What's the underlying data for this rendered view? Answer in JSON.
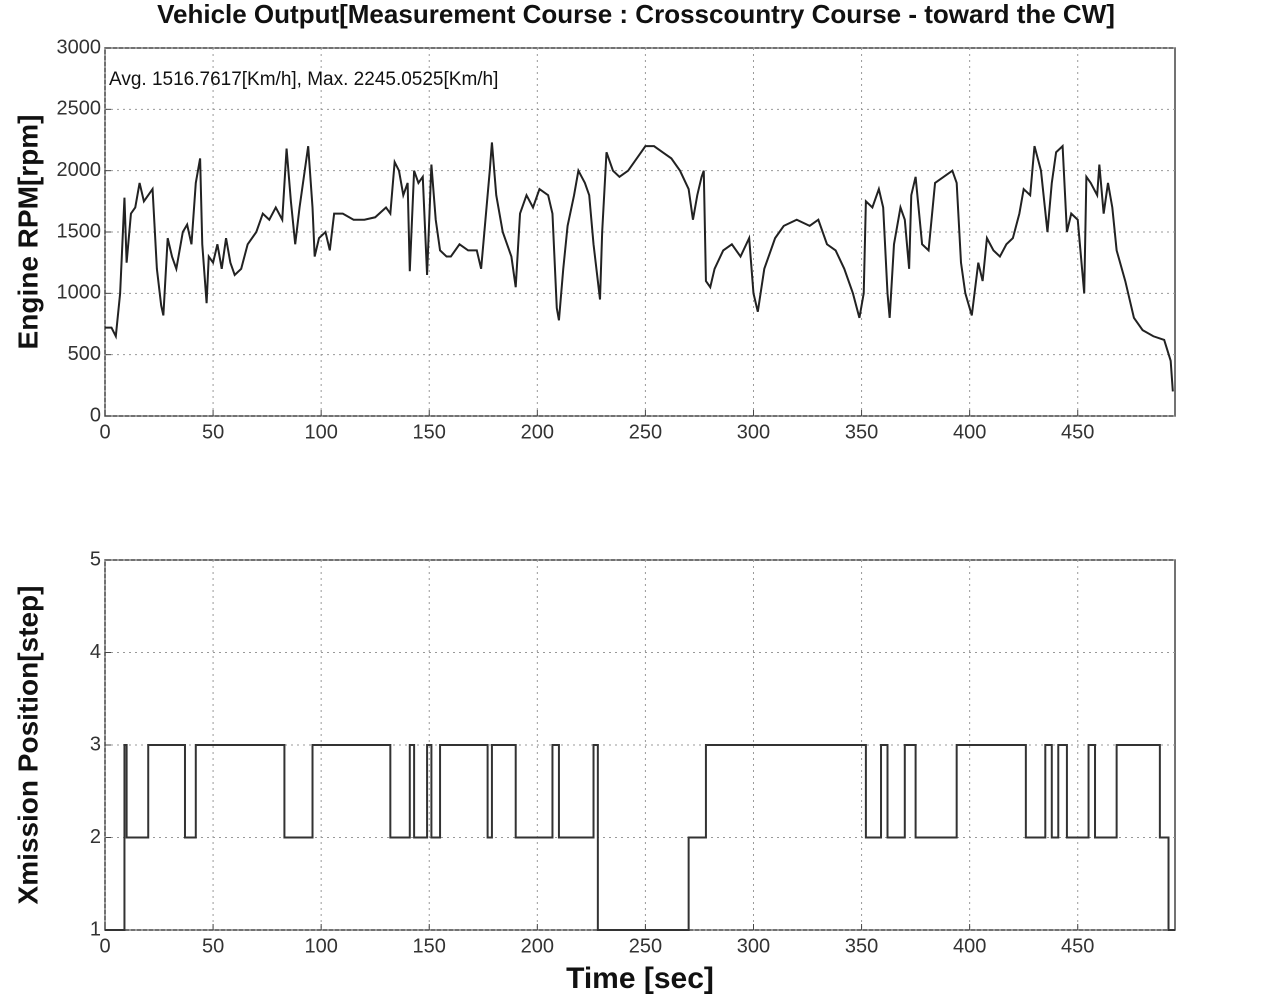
{
  "chart_data": [
    {
      "type": "line",
      "title": "Vehicle Output[Measurement Course : Crosscountry Course - toward the CW]",
      "annotation": "Avg. 1516.7617[Km/h],  Max. 2245.0525[Km/h]",
      "ylabel": "Engine RPM[rpm]",
      "color": "#222222",
      "grid": true,
      "xlim": [
        0,
        495
      ],
      "ylim": [
        0,
        3000
      ],
      "xticks": [
        0,
        50,
        100,
        150,
        200,
        250,
        300,
        350,
        400,
        450
      ],
      "yticks": [
        0,
        500,
        1000,
        1500,
        2000,
        2500,
        3000
      ],
      "x": [
        0,
        3,
        5,
        7,
        9,
        10,
        12,
        14,
        16,
        18,
        20,
        22,
        24,
        26,
        27,
        29,
        31,
        33,
        36,
        38,
        40,
        42,
        44,
        45,
        47,
        48,
        50,
        52,
        54,
        56,
        58,
        60,
        63,
        66,
        70,
        73,
        76,
        79,
        82,
        84,
        86,
        88,
        90,
        94,
        96,
        97,
        99,
        102,
        104,
        106,
        110,
        115,
        120,
        125,
        130,
        132,
        134,
        136,
        138,
        140,
        141,
        143,
        145,
        147,
        149,
        151,
        153,
        155,
        158,
        160,
        164,
        168,
        172,
        174,
        176,
        178,
        179,
        181,
        184,
        188,
        190,
        192,
        195,
        198,
        201,
        205,
        207,
        209,
        210,
        212,
        214,
        217,
        219,
        222,
        224,
        226,
        229,
        230,
        232,
        235,
        238,
        242,
        246,
        250,
        254,
        258,
        262,
        266,
        270,
        272,
        274,
        276,
        277,
        278,
        280,
        282,
        286,
        290,
        294,
        298,
        300,
        302,
        305,
        310,
        314,
        320,
        326,
        330,
        334,
        338,
        342,
        346,
        349,
        351,
        352,
        355,
        358,
        360,
        362,
        363,
        365,
        368,
        370,
        372,
        373,
        375,
        378,
        381,
        384,
        388,
        392,
        394,
        396,
        398,
        401,
        404,
        406,
        408,
        411,
        414,
        417,
        420,
        423,
        425,
        428,
        430,
        433,
        436,
        438,
        440,
        443,
        445,
        447,
        450,
        453,
        454,
        456,
        459,
        460,
        462,
        464,
        466,
        468,
        472,
        476,
        480,
        485,
        490,
        493,
        494
      ],
      "values": [
        720,
        720,
        650,
        1000,
        1780,
        1250,
        1650,
        1700,
        1900,
        1750,
        1800,
        1850,
        1200,
        900,
        820,
        1450,
        1300,
        1200,
        1500,
        1560,
        1400,
        1900,
        2100,
        1400,
        920,
        1300,
        1250,
        1400,
        1200,
        1450,
        1250,
        1150,
        1200,
        1400,
        1500,
        1650,
        1600,
        1700,
        1600,
        2180,
        1750,
        1400,
        1700,
        2200,
        1700,
        1300,
        1450,
        1500,
        1350,
        1650,
        1650,
        1600,
        1600,
        1620,
        1700,
        1650,
        2070,
        2000,
        1800,
        1900,
        1180,
        2000,
        1900,
        1950,
        1150,
        2050,
        1600,
        1350,
        1300,
        1300,
        1400,
        1350,
        1350,
        1200,
        1600,
        2000,
        2230,
        1800,
        1500,
        1300,
        1050,
        1650,
        1800,
        1700,
        1850,
        1800,
        1650,
        880,
        780,
        1200,
        1550,
        1800,
        2000,
        1900,
        1800,
        1400,
        950,
        1500,
        2150,
        2000,
        1950,
        2000,
        2100,
        2200,
        2200,
        2150,
        2100,
        2000,
        1850,
        1600,
        1800,
        1950,
        2000,
        1100,
        1050,
        1200,
        1350,
        1400,
        1300,
        1450,
        1000,
        850,
        1200,
        1450,
        1550,
        1600,
        1550,
        1600,
        1400,
        1350,
        1200,
        1000,
        800,
        1000,
        1750,
        1700,
        1850,
        1700,
        1000,
        800,
        1400,
        1700,
        1600,
        1200,
        1800,
        1950,
        1400,
        1350,
        1900,
        1950,
        2000,
        1900,
        1250,
        1000,
        820,
        1250,
        1100,
        1450,
        1350,
        1300,
        1400,
        1450,
        1650,
        1850,
        1800,
        2200,
        2000,
        1500,
        1900,
        2150,
        2200,
        1500,
        1650,
        1600,
        1000,
        1950,
        1900,
        1800,
        2050,
        1650,
        1900,
        1700,
        1350,
        1100,
        800,
        700,
        650,
        620,
        450,
        200
      ]
    },
    {
      "type": "line",
      "drawstyle": "steps-post",
      "ylabel": "Xmission Position[step]",
      "xlabel": "Time [sec]",
      "color": "#333333",
      "grid": true,
      "xlim": [
        0,
        495
      ],
      "ylim": [
        1,
        5
      ],
      "xticks": [
        0,
        50,
        100,
        150,
        200,
        250,
        300,
        350,
        400,
        450
      ],
      "yticks": [
        1,
        2,
        3,
        4,
        5
      ],
      "x": [
        0,
        9,
        10,
        20,
        37,
        42,
        83,
        96,
        132,
        141,
        143,
        149,
        151,
        155,
        177,
        179,
        190,
        207,
        210,
        226,
        228,
        270,
        278,
        352,
        359,
        362,
        370,
        375,
        394,
        426,
        435,
        438,
        441,
        445,
        455,
        458,
        468,
        488,
        492,
        495
      ],
      "values": [
        1,
        3,
        2,
        3,
        2,
        3,
        2,
        3,
        2,
        3,
        2,
        3,
        2,
        3,
        2,
        3,
        2,
        3,
        2,
        3,
        1,
        2,
        3,
        2,
        3,
        2,
        3,
        2,
        3,
        2,
        3,
        2,
        3,
        2,
        3,
        2,
        3,
        2,
        1,
        1
      ]
    }
  ]
}
